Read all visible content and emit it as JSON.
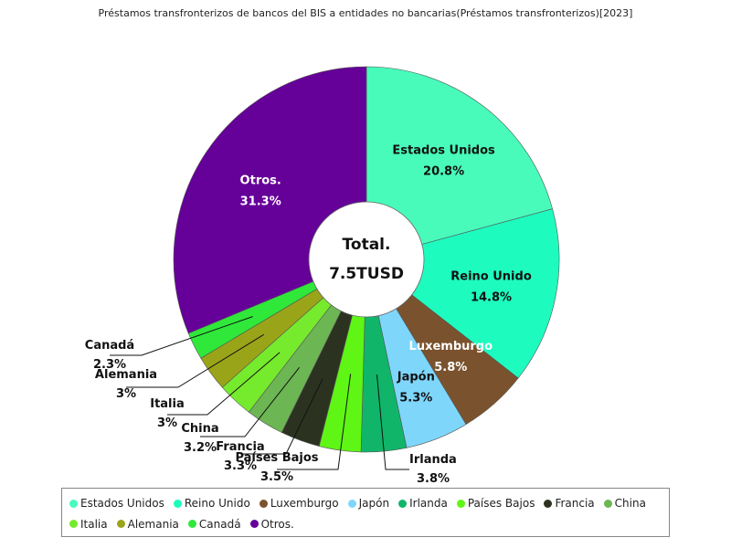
{
  "chart_data": {
    "type": "pie",
    "title": "Préstamos transfronterizos de bancos del BIS a entidades no bancarias(Préstamos transfronterizos)[2023]",
    "center_label": [
      "Total.",
      "7.5TUSD"
    ],
    "legend_position": "bottom",
    "slices": [
      {
        "label": "Estados Unidos",
        "value": 20.8,
        "value_label": "20.8%",
        "color": "#48fbbb"
      },
      {
        "label": "Reino Unido",
        "value": 14.8,
        "value_label": "14.8%",
        "color": "#1efbbf"
      },
      {
        "label": "Luxemburgo",
        "value": 5.8,
        "value_label": "5.8%",
        "color": "#7a522d"
      },
      {
        "label": "Japón",
        "value": 5.3,
        "value_label": "5.3%",
        "color": "#7fd6fb"
      },
      {
        "label": "Irlanda",
        "value": 3.8,
        "value_label": "3.8%",
        "color": "#10b56a"
      },
      {
        "label": "Países Bajos",
        "value": 3.5,
        "value_label": "3.5%",
        "color": "#5ff515"
      },
      {
        "label": "Francia",
        "value": 3.3,
        "value_label": "3.3%",
        "color": "#2b3320"
      },
      {
        "label": "China",
        "value": 3.2,
        "value_label": "3.2%",
        "color": "#6cb653"
      },
      {
        "label": "Italia",
        "value": 3,
        "value_label": "3%",
        "color": "#76ea2c"
      },
      {
        "label": "Alemania",
        "value": 3,
        "value_label": "3%",
        "color": "#9aa418"
      },
      {
        "label": "Canadá",
        "value": 2.3,
        "value_label": "2.3%",
        "color": "#2fe83a"
      },
      {
        "label": "Otros.",
        "value": 31.3,
        "value_label": "31.3%",
        "color": "#650099"
      }
    ]
  }
}
